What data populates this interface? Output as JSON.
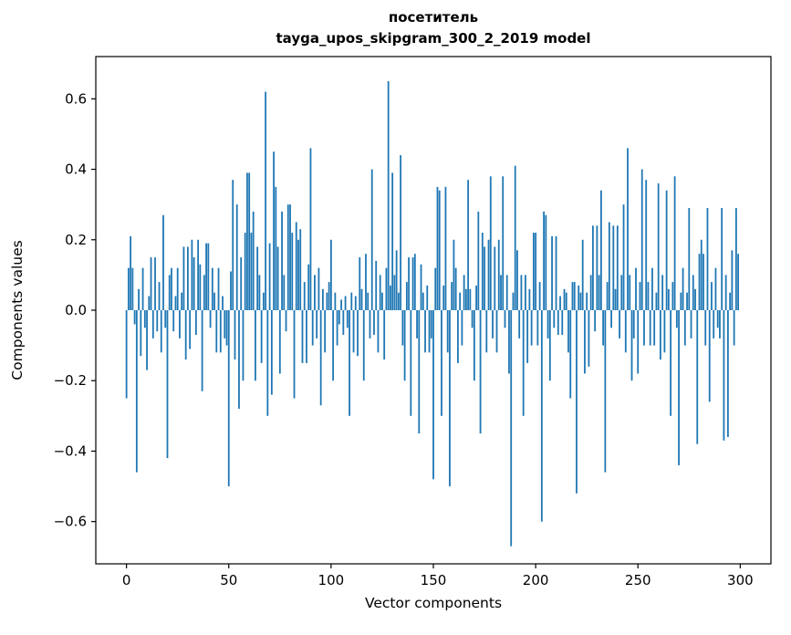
{
  "chart_data": {
    "type": "bar",
    "title": "посетитель",
    "subtitle": "tayga_upos_skipgram_300_2_2019 model",
    "xlabel": "Vector components",
    "ylabel": "Components values",
    "xlim": [
      -15,
      315
    ],
    "ylim": [
      -0.72,
      0.72
    ],
    "x_ticks": [
      0,
      50,
      100,
      150,
      200,
      250,
      300
    ],
    "y_ticks": [
      -0.6,
      -0.4,
      -0.2,
      0.0,
      0.2,
      0.4,
      0.6
    ],
    "bar_color": "#1f77b4",
    "axis_color": "#000000",
    "background_color": "#ffffff",
    "legend": "none",
    "grid": false,
    "values": [
      -0.25,
      0.12,
      0.21,
      0.12,
      -0.04,
      -0.46,
      0.06,
      -0.13,
      0.12,
      -0.05,
      -0.17,
      0.04,
      0.15,
      -0.08,
      0.15,
      -0.06,
      0.08,
      -0.12,
      0.27,
      -0.05,
      -0.42,
      0.1,
      0.12,
      -0.06,
      0.04,
      0.12,
      -0.08,
      0.05,
      0.18,
      -0.14,
      0.18,
      -0.11,
      0.2,
      0.15,
      -0.07,
      0.2,
      0.13,
      -0.23,
      0.1,
      0.19,
      0.19,
      -0.05,
      0.12,
      0.05,
      -0.12,
      0.12,
      -0.12,
      0.04,
      -0.08,
      -0.1,
      -0.5,
      0.11,
      0.37,
      -0.14,
      0.3,
      -0.28,
      0.15,
      -0.2,
      0.22,
      0.39,
      0.39,
      0.22,
      0.28,
      -0.2,
      0.18,
      0.1,
      -0.15,
      0.05,
      0.62,
      -0.3,
      0.19,
      -0.24,
      0.45,
      0.35,
      0.18,
      -0.18,
      0.28,
      0.1,
      -0.06,
      0.3,
      0.3,
      0.22,
      -0.25,
      0.25,
      0.2,
      0.23,
      -0.15,
      0.08,
      -0.15,
      0.13,
      0.46,
      -0.1,
      0.1,
      -0.08,
      0.12,
      -0.27,
      0.06,
      -0.12,
      0.05,
      0.08,
      0.2,
      -0.2,
      0.05,
      -0.1,
      -0.04,
      0.03,
      -0.07,
      0.04,
      -0.05,
      -0.3,
      0.05,
      -0.12,
      0.04,
      -0.13,
      0.15,
      0.06,
      -0.2,
      0.16,
      0.05,
      -0.08,
      0.4,
      -0.07,
      0.14,
      -0.12,
      0.1,
      0.05,
      -0.14,
      0.12,
      0.65,
      0.07,
      0.39,
      0.1,
      0.17,
      0.05,
      0.44,
      -0.1,
      -0.2,
      0.08,
      0.15,
      -0.3,
      0.15,
      0.16,
      -0.08,
      -0.35,
      0.13,
      0.05,
      -0.12,
      0.07,
      -0.12,
      -0.08,
      -0.48,
      0.12,
      0.35,
      0.34,
      -0.3,
      0.07,
      0.35,
      -0.12,
      -0.5,
      0.08,
      0.2,
      0.12,
      -0.15,
      0.05,
      -0.1,
      0.1,
      0.06,
      0.37,
      0.06,
      -0.05,
      -0.2,
      0.07,
      0.28,
      -0.35,
      0.22,
      0.18,
      -0.12,
      0.2,
      0.38,
      -0.08,
      0.18,
      -0.12,
      0.2,
      0.1,
      0.38,
      -0.05,
      0.1,
      -0.18,
      -0.67,
      0.05,
      0.41,
      0.17,
      -0.08,
      0.1,
      -0.3,
      0.1,
      -0.15,
      0.06,
      -0.1,
      0.22,
      0.22,
      -0.1,
      0.08,
      -0.6,
      0.28,
      0.27,
      -0.08,
      -0.2,
      0.21,
      -0.05,
      0.21,
      -0.07,
      0.04,
      -0.07,
      0.06,
      0.05,
      -0.12,
      -0.25,
      0.08,
      0.08,
      -0.52,
      0.07,
      0.05,
      0.2,
      -0.18,
      0.05,
      -0.16,
      0.1,
      0.24,
      -0.06,
      0.24,
      0.1,
      0.34,
      -0.1,
      -0.46,
      0.08,
      0.25,
      -0.05,
      0.24,
      0.06,
      0.24,
      -0.08,
      0.1,
      0.3,
      -0.12,
      0.46,
      0.1,
      -0.2,
      -0.08,
      0.12,
      -0.18,
      0.08,
      0.4,
      -0.1,
      0.37,
      0.08,
      -0.1,
      0.12,
      -0.1,
      0.05,
      0.36,
      -0.14,
      0.1,
      -0.12,
      0.34,
      0.06,
      -0.3,
      0.08,
      0.38,
      -0.05,
      -0.44,
      0.05,
      0.12,
      -0.1,
      0.05,
      0.29,
      -0.08,
      0.1,
      0.06,
      -0.38,
      0.16,
      0.2,
      0.16,
      -0.1,
      0.29,
      -0.26,
      0.08,
      -0.08,
      0.12,
      -0.05,
      -0.08,
      0.29,
      -0.37,
      0.1,
      -0.36,
      0.05,
      0.17,
      -0.1,
      0.29,
      0.16
    ]
  }
}
